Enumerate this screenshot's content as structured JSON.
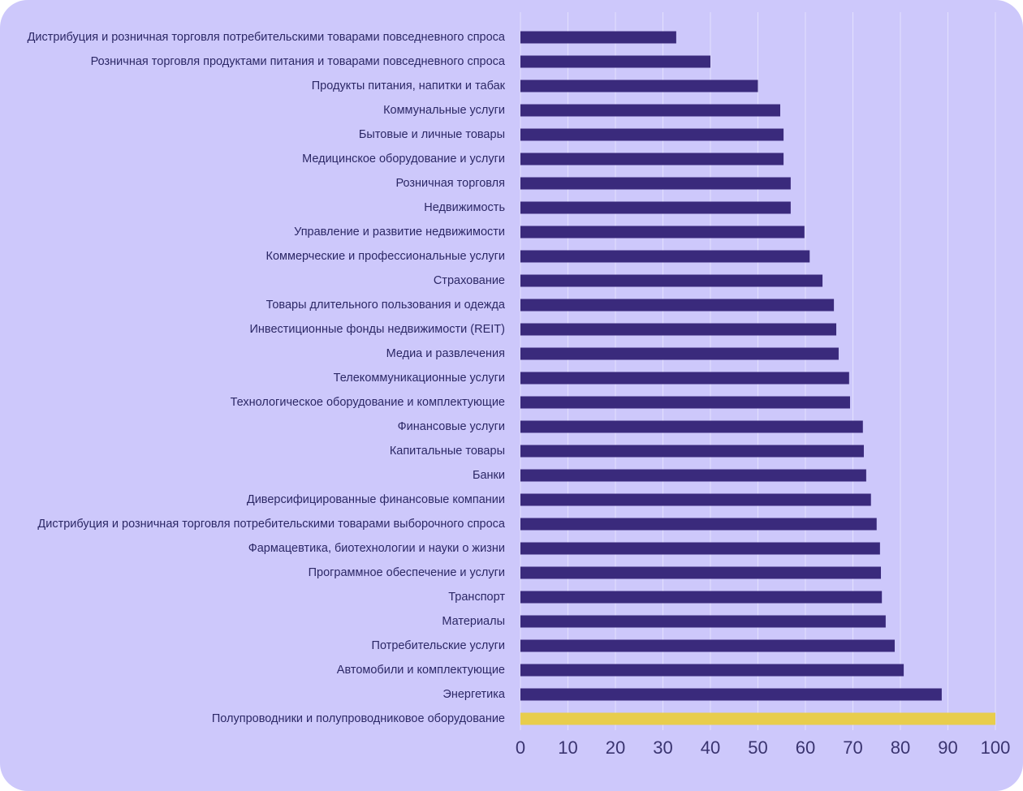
{
  "chart_data": {
    "type": "bar",
    "orientation": "horizontal",
    "categories": [
      "Дистрибуция и розничная торговля потребительскими товарами повседневного спроса",
      "Розничная торговля продуктами питания и товарами повседневного спроса",
      "Продукты питания, напитки и табак",
      "Коммунальные услуги",
      "Бытовые и личные товары",
      "Медицинское оборудование и услуги",
      "Розничная торговля",
      "Недвижимость",
      "Управление и развитие недвижимости",
      "Коммерческие и профессиональные услуги",
      "Страхование",
      "Товары длительного пользования и одежда",
      "Инвестиционные фонды недвижимости (REIT)",
      "Медиа и развлечения",
      "Телекоммуникационные услуги",
      "Технологическое оборудование и комплектующие",
      "Финансовые услуги",
      "Капитальные товары",
      "Банки",
      "Диверсифицированные финансовые компании",
      "Дистрибуция и розничная торговля потребительскими товарами выборочного спроса",
      "Фармацевтика, биотехнологии и науки о жизни",
      "Программное обеспечение и услуги",
      "Транспорт",
      "Материалы",
      "Потребительские услуги",
      "Автомобили и комплектующие",
      "Энергетика",
      "Полупроводники и полупроводниковое оборудование"
    ],
    "values": [
      32.8,
      40,
      50,
      54.7,
      55.4,
      55.4,
      56.9,
      56.9,
      59.8,
      60.9,
      63.6,
      66,
      66.5,
      67,
      69.2,
      69.4,
      72.1,
      72.3,
      72.8,
      73.8,
      75,
      75.7,
      75.9,
      76.1,
      76.9,
      78.8,
      80.7,
      88.7,
      100
    ],
    "colors": [
      "#3a2a7c",
      "#3a2a7c",
      "#3a2a7c",
      "#3a2a7c",
      "#3a2a7c",
      "#3a2a7c",
      "#3a2a7c",
      "#3a2a7c",
      "#3a2a7c",
      "#3a2a7c",
      "#3a2a7c",
      "#3a2a7c",
      "#3a2a7c",
      "#3a2a7c",
      "#3a2a7c",
      "#3a2a7c",
      "#3a2a7c",
      "#3a2a7c",
      "#3a2a7c",
      "#3a2a7c",
      "#3a2a7c",
      "#3a2a7c",
      "#3a2a7c",
      "#3a2a7c",
      "#3a2a7c",
      "#3a2a7c",
      "#3a2a7c",
      "#3a2a7c",
      "#e8cd4c"
    ],
    "xlim": [
      0,
      100
    ],
    "xticks": [
      0,
      10,
      20,
      30,
      40,
      50,
      60,
      70,
      80,
      90,
      100
    ],
    "grid": true
  }
}
